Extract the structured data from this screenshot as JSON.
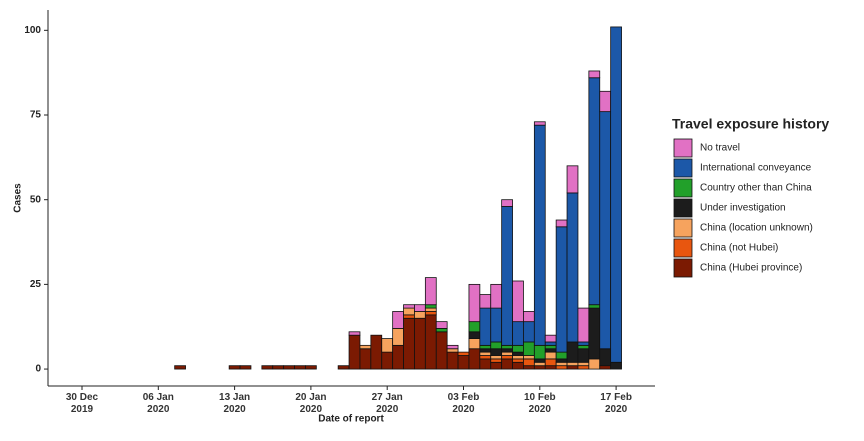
{
  "chart_data": {
    "type": "stacked_bar",
    "x_label": "Date of report",
    "y_label": "Cases",
    "legend_title": "Travel exposure history",
    "legend_position": "right",
    "categories": [
      "30 Dec 2019",
      null,
      null,
      null,
      null,
      null,
      null,
      "06 Jan 2020",
      null,
      null,
      null,
      null,
      null,
      null,
      "13 Jan 2020",
      null,
      null,
      null,
      null,
      null,
      null,
      "20 Jan 2020",
      null,
      null,
      null,
      null,
      null,
      null,
      "27 Jan 2020",
      null,
      null,
      null,
      null,
      null,
      null,
      "03 Feb 2020",
      null,
      null,
      null,
      null,
      null,
      null,
      "10 Feb 2020",
      null,
      null,
      null,
      null,
      null,
      null,
      "17 Feb 2020"
    ],
    "ylim": [
      -5,
      106
    ],
    "yticks": [
      0,
      25,
      50,
      75,
      100
    ],
    "series": [
      {
        "name": "China (Hubei province)",
        "color": "#7b1a02",
        "values": [
          0,
          0,
          0,
          0,
          0,
          0,
          0,
          0,
          0,
          1,
          0,
          0,
          0,
          0,
          1,
          1,
          0,
          1,
          1,
          1,
          1,
          1,
          0,
          0,
          1,
          10,
          6,
          10,
          5,
          7,
          15,
          15,
          16,
          11,
          5,
          4,
          6,
          3,
          2,
          3,
          2,
          1,
          1,
          1,
          0,
          1,
          0,
          0,
          1,
          0
        ]
      },
      {
        "name": "China (not Hubei)",
        "color": "#e8560f",
        "values": [
          0,
          0,
          0,
          0,
          0,
          0,
          0,
          0,
          0,
          0,
          0,
          0,
          0,
          0,
          0,
          0,
          0,
          0,
          0,
          0,
          0,
          0,
          0,
          0,
          0,
          0,
          0,
          0,
          0,
          0,
          1,
          0,
          1,
          0,
          0,
          1,
          0,
          1,
          1,
          1,
          1,
          2,
          0,
          2,
          1,
          0,
          1,
          0,
          0,
          0
        ]
      },
      {
        "name": "China (location unknown)",
        "color": "#f6a35e",
        "values": [
          0,
          0,
          0,
          0,
          0,
          0,
          0,
          0,
          0,
          0,
          0,
          0,
          0,
          0,
          0,
          0,
          0,
          0,
          0,
          0,
          0,
          0,
          0,
          0,
          0,
          0,
          1,
          0,
          4,
          5,
          2,
          2,
          1,
          0,
          1,
          0,
          3,
          1,
          1,
          1,
          1,
          1,
          1,
          2,
          1,
          1,
          1,
          3,
          0,
          0
        ]
      },
      {
        "name": "Under investigation",
        "color": "#1c1c1c",
        "values": [
          0,
          0,
          0,
          0,
          0,
          0,
          0,
          0,
          0,
          0,
          0,
          0,
          0,
          0,
          0,
          0,
          0,
          0,
          0,
          0,
          0,
          0,
          0,
          0,
          0,
          0,
          0,
          0,
          0,
          0,
          0,
          0,
          0,
          0,
          0,
          0,
          2,
          1,
          2,
          1,
          1,
          0,
          1,
          1,
          1,
          6,
          4,
          15,
          5,
          2
        ]
      },
      {
        "name": "Country other than China",
        "color": "#22a02a",
        "values": [
          0,
          0,
          0,
          0,
          0,
          0,
          0,
          0,
          0,
          0,
          0,
          0,
          0,
          0,
          0,
          0,
          0,
          0,
          0,
          0,
          0,
          0,
          0,
          0,
          0,
          0,
          0,
          0,
          0,
          0,
          0,
          0,
          1,
          1,
          0,
          0,
          3,
          1,
          2,
          1,
          2,
          4,
          4,
          1,
          2,
          0,
          1,
          1,
          0,
          0
        ]
      },
      {
        "name": "International conveyance",
        "color": "#1c58a8",
        "values": [
          0,
          0,
          0,
          0,
          0,
          0,
          0,
          0,
          0,
          0,
          0,
          0,
          0,
          0,
          0,
          0,
          0,
          0,
          0,
          0,
          0,
          0,
          0,
          0,
          0,
          0,
          0,
          0,
          0,
          0,
          0,
          0,
          0,
          0,
          0,
          0,
          0,
          11,
          10,
          41,
          7,
          6,
          65,
          1,
          37,
          44,
          1,
          67,
          70,
          99
        ]
      },
      {
        "name": "No travel",
        "color": "#e171c4",
        "values": [
          0,
          0,
          0,
          0,
          0,
          0,
          0,
          0,
          0,
          0,
          0,
          0,
          0,
          0,
          0,
          0,
          0,
          0,
          0,
          0,
          0,
          0,
          0,
          0,
          0,
          1,
          0,
          0,
          0,
          5,
          1,
          2,
          8,
          2,
          1,
          0,
          11,
          4,
          7,
          2,
          12,
          3,
          1,
          2,
          2,
          8,
          10,
          2,
          6,
          0
        ]
      }
    ]
  }
}
